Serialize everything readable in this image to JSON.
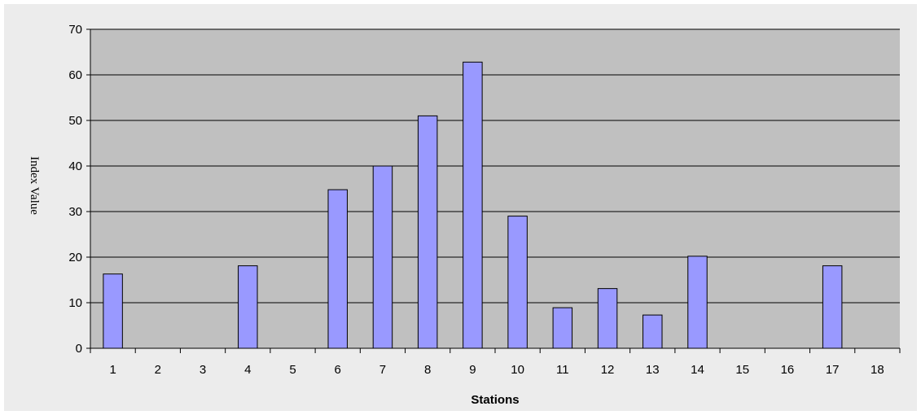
{
  "chart_data": {
    "type": "bar",
    "title": "",
    "xlabel": "Stations",
    "ylabel": "Index Value",
    "categories": [
      "1",
      "2",
      "3",
      "4",
      "5",
      "6",
      "7",
      "8",
      "9",
      "10",
      "11",
      "12",
      "13",
      "14",
      "15",
      "16",
      "17",
      "18"
    ],
    "values": [
      16.3,
      0,
      0,
      18.1,
      0,
      34.8,
      40,
      51,
      62.8,
      29,
      8.9,
      13.1,
      7.3,
      20.2,
      0,
      0,
      18.1,
      0
    ],
    "ylim": [
      0,
      70
    ],
    "yticks": [
      0,
      10,
      20,
      30,
      40,
      50,
      60,
      70
    ],
    "grid": true,
    "legend": "none",
    "colors": {
      "bar_fill": "#9999ff",
      "bar_stroke": "#000000",
      "plot_background": "#c0c0c0",
      "frame_background": "#ececec",
      "gridline": "#000000"
    }
  }
}
